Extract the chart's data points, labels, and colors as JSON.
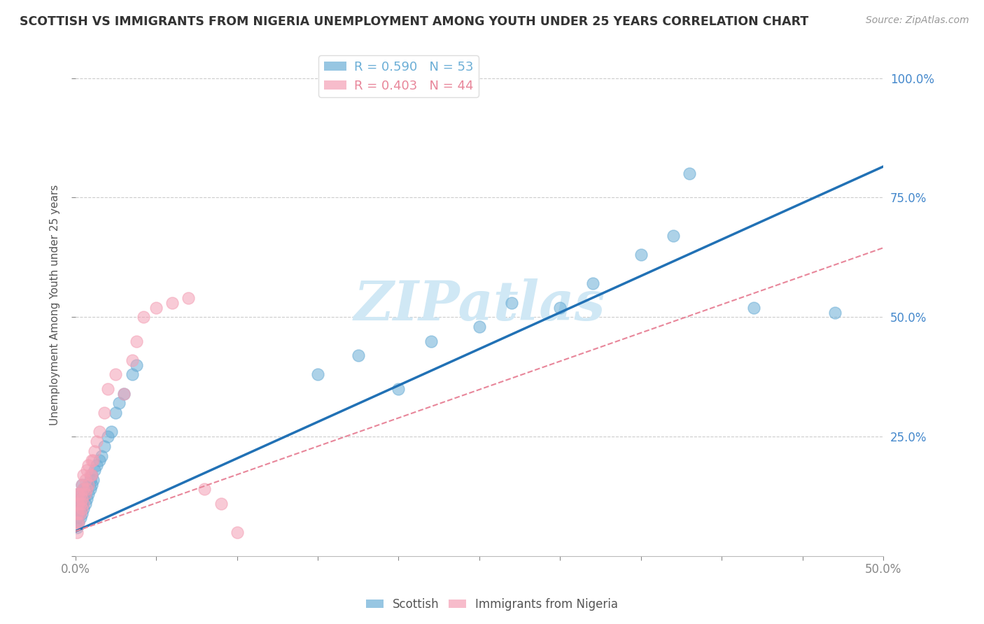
{
  "title": "SCOTTISH VS IMMIGRANTS FROM NIGERIA UNEMPLOYMENT AMONG YOUTH UNDER 25 YEARS CORRELATION CHART",
  "source": "Source: ZipAtlas.com",
  "ylabel": "Unemployment Among Youth under 25 years",
  "xlim": [
    0.0,
    0.5
  ],
  "ylim": [
    0.0,
    1.05
  ],
  "xtick_pos": [
    0.0,
    0.05,
    0.1,
    0.15,
    0.2,
    0.25,
    0.3,
    0.35,
    0.4,
    0.45,
    0.5
  ],
  "xtick_labels": [
    "0.0%",
    "",
    "",
    "",
    "",
    "",
    "",
    "",
    "",
    "",
    "50.0%"
  ],
  "ytick_positions": [
    0.0,
    0.25,
    0.5,
    0.75,
    1.0
  ],
  "ytick_labels": [
    "",
    "25.0%",
    "50.0%",
    "75.0%",
    "100.0%"
  ],
  "legend_entries": [
    {
      "label": "R = 0.590   N = 53",
      "color": "#6baed6"
    },
    {
      "label": "R = 0.403   N = 44",
      "color": "#e8869a"
    }
  ],
  "watermark": "ZIPatlas",
  "watermark_color": "#d0e8f5",
  "scottish_color": "#6baed6",
  "nigeria_color": "#f4a0b5",
  "scottish_line_color": "#2171b5",
  "nigeria_line_color": "#e8869a",
  "background_color": "#ffffff",
  "scottish_line": {
    "x0": 0.0,
    "y0": 0.052,
    "x1": 0.5,
    "y1": 0.815
  },
  "nigeria_line": {
    "x0": 0.0,
    "y0": 0.052,
    "x1": 0.5,
    "y1": 0.645
  },
  "scottish_x": [
    0.001,
    0.001,
    0.001,
    0.002,
    0.002,
    0.002,
    0.002,
    0.003,
    0.003,
    0.003,
    0.004,
    0.004,
    0.004,
    0.004,
    0.005,
    0.005,
    0.005,
    0.006,
    0.006,
    0.007,
    0.007,
    0.008,
    0.008,
    0.009,
    0.009,
    0.01,
    0.01,
    0.011,
    0.012,
    0.013,
    0.015,
    0.016,
    0.018,
    0.02,
    0.022,
    0.025,
    0.027,
    0.03,
    0.035,
    0.038,
    0.15,
    0.175,
    0.2,
    0.22,
    0.25,
    0.27,
    0.3,
    0.32,
    0.35,
    0.37,
    0.38,
    0.42,
    0.47
  ],
  "scottish_y": [
    0.06,
    0.08,
    0.1,
    0.07,
    0.09,
    0.11,
    0.13,
    0.08,
    0.1,
    0.12,
    0.09,
    0.11,
    0.13,
    0.15,
    0.1,
    0.12,
    0.14,
    0.11,
    0.13,
    0.12,
    0.14,
    0.13,
    0.15,
    0.14,
    0.16,
    0.15,
    0.17,
    0.16,
    0.18,
    0.19,
    0.2,
    0.21,
    0.23,
    0.25,
    0.26,
    0.3,
    0.32,
    0.34,
    0.38,
    0.4,
    0.38,
    0.42,
    0.35,
    0.45,
    0.48,
    0.53,
    0.52,
    0.57,
    0.63,
    0.67,
    0.8,
    0.52,
    0.51
  ],
  "nigeria_x": [
    0.001,
    0.001,
    0.001,
    0.001,
    0.001,
    0.002,
    0.002,
    0.002,
    0.002,
    0.003,
    0.003,
    0.003,
    0.004,
    0.004,
    0.004,
    0.005,
    0.005,
    0.005,
    0.006,
    0.006,
    0.007,
    0.007,
    0.008,
    0.008,
    0.009,
    0.01,
    0.01,
    0.011,
    0.012,
    0.013,
    0.015,
    0.018,
    0.02,
    0.025,
    0.03,
    0.035,
    0.038,
    0.042,
    0.05,
    0.06,
    0.07,
    0.08,
    0.09,
    0.1
  ],
  "nigeria_y": [
    0.05,
    0.07,
    0.09,
    0.11,
    0.13,
    0.07,
    0.09,
    0.11,
    0.13,
    0.09,
    0.11,
    0.13,
    0.1,
    0.12,
    0.15,
    0.11,
    0.14,
    0.17,
    0.13,
    0.16,
    0.14,
    0.18,
    0.15,
    0.19,
    0.17,
    0.17,
    0.2,
    0.2,
    0.22,
    0.24,
    0.26,
    0.3,
    0.35,
    0.38,
    0.34,
    0.41,
    0.45,
    0.5,
    0.52,
    0.53,
    0.54,
    0.14,
    0.11,
    0.05
  ]
}
